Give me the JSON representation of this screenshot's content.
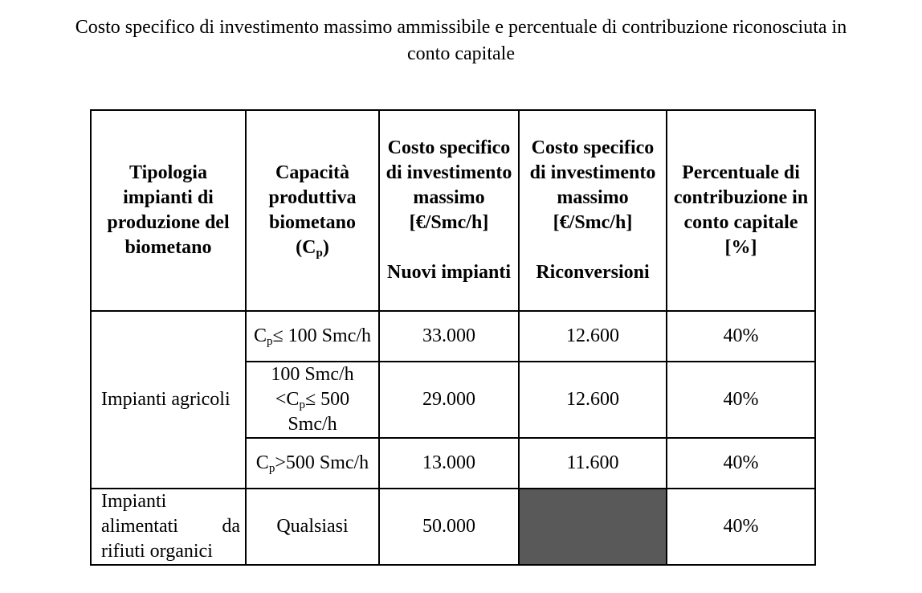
{
  "title": {
    "line1": "Costo specifico di investimento massimo ammissibile e percentuale di contribuzione riconosciuta in",
    "line2": "conto capitale"
  },
  "table": {
    "headers": {
      "col1": "Tipologia impianti di produzione del biometano",
      "col2_main": "Capacità produttiva biometano",
      "col2_unit_open": "(C",
      "col2_sub": "p",
      "col2_unit_close": ")",
      "col3_main": "Costo specifico di investimento massimo [€/Smc/h]",
      "col3_sub": "Nuovi impianti",
      "col4_main": "Costo specifico di investimento massimo [€/Smc/h]",
      "col4_sub": "Riconversioni",
      "col5": "Percentuale di contribuzione in conto capitale [%]"
    },
    "group_agricoli": "Impianti agricoli",
    "rows": [
      {
        "cap_prefix": "",
        "cap_c": "C",
        "cap_p": "p",
        "cap_suffix": "≤ 100 Smc/h",
        "nuovi": "33.000",
        "riconversioni": "12.600",
        "percentuale": "40%"
      },
      {
        "cap_prefix": "100 Smc/h <",
        "cap_c": "C",
        "cap_p": "p",
        "cap_suffix": "≤ 500 Smc/h",
        "nuovi": "29.000",
        "riconversioni": "12.600",
        "percentuale": "40%"
      },
      {
        "cap_prefix": "",
        "cap_c": "C",
        "cap_p": "p",
        "cap_suffix": ">500 Smc/h",
        "nuovi": "13.000",
        "riconversioni": "11.600",
        "percentuale": "40%"
      }
    ],
    "rifiuti": {
      "label": "Impianti alimentati da rifiuti organici",
      "capacita": "Qualsiasi",
      "nuovi": "50.000",
      "riconversioni": "",
      "percentuale": "40%"
    }
  }
}
